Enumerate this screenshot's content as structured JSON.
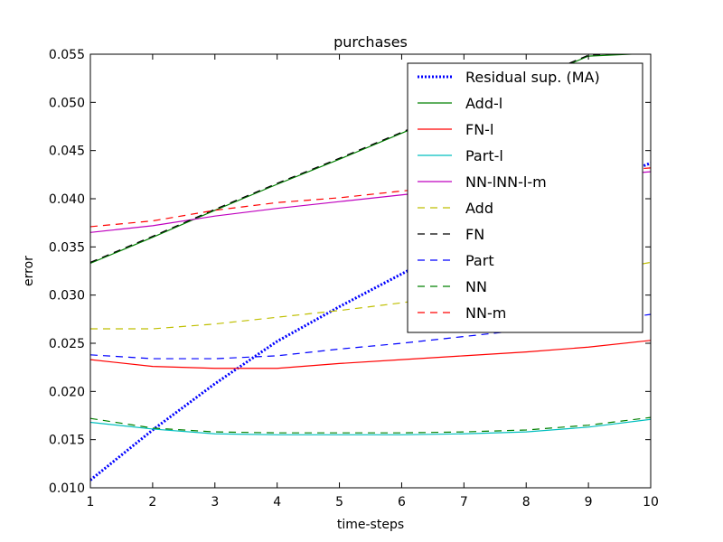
{
  "chart_data": {
    "type": "line",
    "title": "purchases",
    "xlabel": "time-steps",
    "ylabel": "error",
    "xlim": [
      1,
      10
    ],
    "ylim": [
      0.01,
      0.055
    ],
    "x": [
      1,
      2,
      3,
      4,
      5,
      6,
      7,
      8,
      9,
      10
    ],
    "xticks": [
      "1",
      "2",
      "3",
      "4",
      "5",
      "6",
      "7",
      "8",
      "9",
      "10"
    ],
    "yticks": [
      "0.010",
      "0.015",
      "0.020",
      "0.025",
      "0.030",
      "0.035",
      "0.040",
      "0.045",
      "0.050",
      "0.055"
    ],
    "grid": false,
    "legend_position": "top-right",
    "series": [
      {
        "name": "Residual sup. (MA)",
        "color": "#0000ff",
        "style": "dotted-thick",
        "values": [
          0.0108,
          0.016,
          0.0208,
          0.0252,
          0.0288,
          0.0322,
          0.0355,
          0.0385,
          0.0412,
          0.0437
        ]
      },
      {
        "name": "Add-l",
        "color": "#008000",
        "style": "solid",
        "values": [
          0.0333,
          0.036,
          0.0388,
          0.0415,
          0.0441,
          0.0468,
          0.0495,
          0.0521,
          0.0548,
          0.0551
        ]
      },
      {
        "name": "FN-l",
        "color": "#ff0000",
        "style": "solid",
        "values": [
          0.0233,
          0.0226,
          0.0224,
          0.0224,
          0.0229,
          0.0233,
          0.0237,
          0.0241,
          0.0246,
          0.0253
        ]
      },
      {
        "name": "Part-l",
        "color": "#00bfbf",
        "style": "solid",
        "values": [
          0.0168,
          0.0161,
          0.0156,
          0.0155,
          0.0155,
          0.0155,
          0.0156,
          0.0158,
          0.0163,
          0.0171
        ]
      },
      {
        "name": "NN-lNN-l-m",
        "color": "#bf00bf",
        "style": "solid",
        "values": [
          0.0365,
          0.0372,
          0.0382,
          0.039,
          0.0397,
          0.0404,
          0.0411,
          0.0417,
          0.0423,
          0.0428
        ]
      },
      {
        "name": "Add",
        "color": "#bfbf00",
        "style": "dashed",
        "values": [
          0.0265,
          0.0265,
          0.027,
          0.0277,
          0.0284,
          0.0292,
          0.0301,
          0.0311,
          0.0322,
          0.0334
        ]
      },
      {
        "name": "FN",
        "color": "#000000",
        "style": "dashed",
        "values": [
          0.0334,
          0.0361,
          0.0389,
          0.0416,
          0.0442,
          0.0469,
          0.0496,
          0.0522,
          0.0549,
          0.0552
        ]
      },
      {
        "name": "Part",
        "color": "#0000ff",
        "style": "dashed",
        "values": [
          0.0238,
          0.0234,
          0.0234,
          0.0237,
          0.0244,
          0.025,
          0.0257,
          0.0264,
          0.0271,
          0.028
        ]
      },
      {
        "name": "NN",
        "color": "#008000",
        "style": "dashed",
        "values": [
          0.0172,
          0.0162,
          0.0158,
          0.0157,
          0.0157,
          0.0157,
          0.0158,
          0.016,
          0.0165,
          0.0173
        ]
      },
      {
        "name": "NN-m",
        "color": "#ff0000",
        "style": "dashed",
        "values": [
          0.0371,
          0.0377,
          0.0388,
          0.0396,
          0.0401,
          0.0408,
          0.0414,
          0.0421,
          0.0427,
          0.0432
        ]
      }
    ]
  }
}
